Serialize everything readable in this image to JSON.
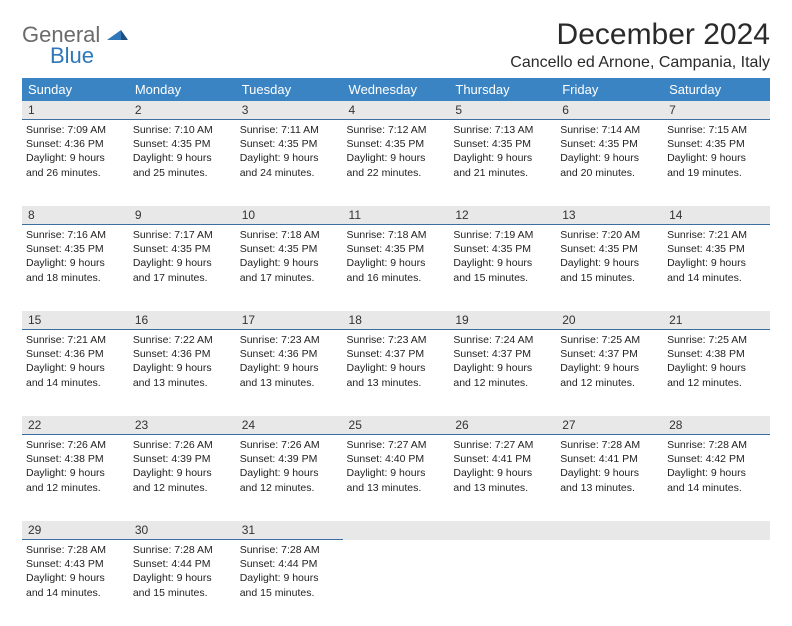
{
  "logo": {
    "general": "General",
    "blue": "Blue"
  },
  "title": "December 2024",
  "location": "Cancello ed Arnone, Campania, Italy",
  "colors": {
    "header_bg": "#3b84c4",
    "header_fg": "#ffffff",
    "daynum_bg": "#e8e8e8",
    "daynum_border": "#3b6fa0",
    "text": "#222222",
    "logo_gray": "#6b6b6b",
    "logo_blue": "#2f77b8"
  },
  "weekdays": [
    "Sunday",
    "Monday",
    "Tuesday",
    "Wednesday",
    "Thursday",
    "Friday",
    "Saturday"
  ],
  "weeks": [
    [
      {
        "d": "1",
        "sr": "Sunrise: 7:09 AM",
        "ss": "Sunset: 4:36 PM",
        "dl": "Daylight: 9 hours and 26 minutes."
      },
      {
        "d": "2",
        "sr": "Sunrise: 7:10 AM",
        "ss": "Sunset: 4:35 PM",
        "dl": "Daylight: 9 hours and 25 minutes."
      },
      {
        "d": "3",
        "sr": "Sunrise: 7:11 AM",
        "ss": "Sunset: 4:35 PM",
        "dl": "Daylight: 9 hours and 24 minutes."
      },
      {
        "d": "4",
        "sr": "Sunrise: 7:12 AM",
        "ss": "Sunset: 4:35 PM",
        "dl": "Daylight: 9 hours and 22 minutes."
      },
      {
        "d": "5",
        "sr": "Sunrise: 7:13 AM",
        "ss": "Sunset: 4:35 PM",
        "dl": "Daylight: 9 hours and 21 minutes."
      },
      {
        "d": "6",
        "sr": "Sunrise: 7:14 AM",
        "ss": "Sunset: 4:35 PM",
        "dl": "Daylight: 9 hours and 20 minutes."
      },
      {
        "d": "7",
        "sr": "Sunrise: 7:15 AM",
        "ss": "Sunset: 4:35 PM",
        "dl": "Daylight: 9 hours and 19 minutes."
      }
    ],
    [
      {
        "d": "8",
        "sr": "Sunrise: 7:16 AM",
        "ss": "Sunset: 4:35 PM",
        "dl": "Daylight: 9 hours and 18 minutes."
      },
      {
        "d": "9",
        "sr": "Sunrise: 7:17 AM",
        "ss": "Sunset: 4:35 PM",
        "dl": "Daylight: 9 hours and 17 minutes."
      },
      {
        "d": "10",
        "sr": "Sunrise: 7:18 AM",
        "ss": "Sunset: 4:35 PM",
        "dl": "Daylight: 9 hours and 17 minutes."
      },
      {
        "d": "11",
        "sr": "Sunrise: 7:18 AM",
        "ss": "Sunset: 4:35 PM",
        "dl": "Daylight: 9 hours and 16 minutes."
      },
      {
        "d": "12",
        "sr": "Sunrise: 7:19 AM",
        "ss": "Sunset: 4:35 PM",
        "dl": "Daylight: 9 hours and 15 minutes."
      },
      {
        "d": "13",
        "sr": "Sunrise: 7:20 AM",
        "ss": "Sunset: 4:35 PM",
        "dl": "Daylight: 9 hours and 15 minutes."
      },
      {
        "d": "14",
        "sr": "Sunrise: 7:21 AM",
        "ss": "Sunset: 4:35 PM",
        "dl": "Daylight: 9 hours and 14 minutes."
      }
    ],
    [
      {
        "d": "15",
        "sr": "Sunrise: 7:21 AM",
        "ss": "Sunset: 4:36 PM",
        "dl": "Daylight: 9 hours and 14 minutes."
      },
      {
        "d": "16",
        "sr": "Sunrise: 7:22 AM",
        "ss": "Sunset: 4:36 PM",
        "dl": "Daylight: 9 hours and 13 minutes."
      },
      {
        "d": "17",
        "sr": "Sunrise: 7:23 AM",
        "ss": "Sunset: 4:36 PM",
        "dl": "Daylight: 9 hours and 13 minutes."
      },
      {
        "d": "18",
        "sr": "Sunrise: 7:23 AM",
        "ss": "Sunset: 4:37 PM",
        "dl": "Daylight: 9 hours and 13 minutes."
      },
      {
        "d": "19",
        "sr": "Sunrise: 7:24 AM",
        "ss": "Sunset: 4:37 PM",
        "dl": "Daylight: 9 hours and 12 minutes."
      },
      {
        "d": "20",
        "sr": "Sunrise: 7:25 AM",
        "ss": "Sunset: 4:37 PM",
        "dl": "Daylight: 9 hours and 12 minutes."
      },
      {
        "d": "21",
        "sr": "Sunrise: 7:25 AM",
        "ss": "Sunset: 4:38 PM",
        "dl": "Daylight: 9 hours and 12 minutes."
      }
    ],
    [
      {
        "d": "22",
        "sr": "Sunrise: 7:26 AM",
        "ss": "Sunset: 4:38 PM",
        "dl": "Daylight: 9 hours and 12 minutes."
      },
      {
        "d": "23",
        "sr": "Sunrise: 7:26 AM",
        "ss": "Sunset: 4:39 PM",
        "dl": "Daylight: 9 hours and 12 minutes."
      },
      {
        "d": "24",
        "sr": "Sunrise: 7:26 AM",
        "ss": "Sunset: 4:39 PM",
        "dl": "Daylight: 9 hours and 12 minutes."
      },
      {
        "d": "25",
        "sr": "Sunrise: 7:27 AM",
        "ss": "Sunset: 4:40 PM",
        "dl": "Daylight: 9 hours and 13 minutes."
      },
      {
        "d": "26",
        "sr": "Sunrise: 7:27 AM",
        "ss": "Sunset: 4:41 PM",
        "dl": "Daylight: 9 hours and 13 minutes."
      },
      {
        "d": "27",
        "sr": "Sunrise: 7:28 AM",
        "ss": "Sunset: 4:41 PM",
        "dl": "Daylight: 9 hours and 13 minutes."
      },
      {
        "d": "28",
        "sr": "Sunrise: 7:28 AM",
        "ss": "Sunset: 4:42 PM",
        "dl": "Daylight: 9 hours and 14 minutes."
      }
    ],
    [
      {
        "d": "29",
        "sr": "Sunrise: 7:28 AM",
        "ss": "Sunset: 4:43 PM",
        "dl": "Daylight: 9 hours and 14 minutes."
      },
      {
        "d": "30",
        "sr": "Sunrise: 7:28 AM",
        "ss": "Sunset: 4:44 PM",
        "dl": "Daylight: 9 hours and 15 minutes."
      },
      {
        "d": "31",
        "sr": "Sunrise: 7:28 AM",
        "ss": "Sunset: 4:44 PM",
        "dl": "Daylight: 9 hours and 15 minutes."
      },
      null,
      null,
      null,
      null
    ]
  ]
}
